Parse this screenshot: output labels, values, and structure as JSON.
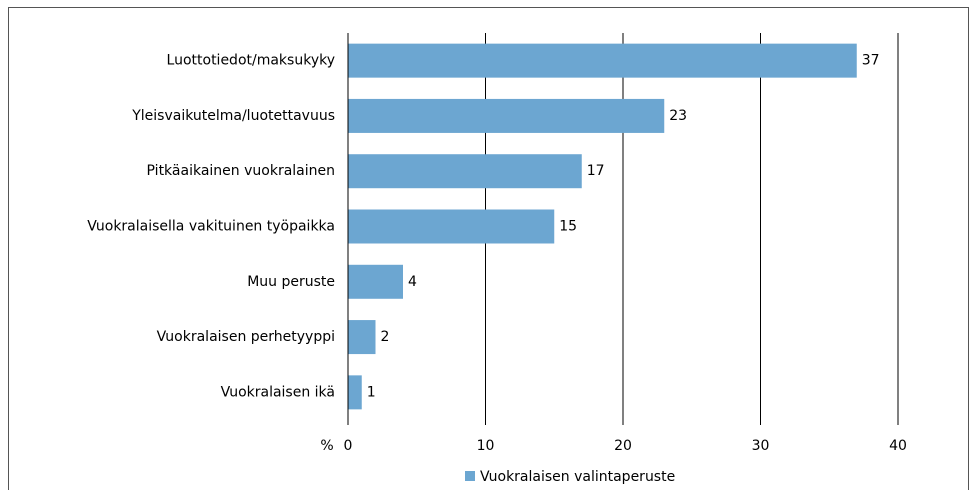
{
  "chart_data": {
    "type": "bar",
    "orientation": "horizontal",
    "categories": [
      "Luottotiedot/maksukyky",
      "Yleisvaikutelma/luotettavuus",
      "Pitkäaikainen vuokralainen",
      "Vuokralaisella vakituinen työpaikka",
      "Muu peruste",
      "Vuokralaisen perhetyyppi",
      "Vuokralaisen ikä"
    ],
    "series": [
      {
        "name": "Vuokralaisen valintaperuste",
        "color": "#6ca6d1",
        "values": [
          37,
          23,
          17,
          15,
          4,
          2,
          1
        ]
      }
    ],
    "xlabel": "%",
    "xlim": [
      0,
      40
    ],
    "xticks": [
      0,
      10,
      20,
      30,
      40
    ],
    "grid": true,
    "legend": "bottom"
  }
}
